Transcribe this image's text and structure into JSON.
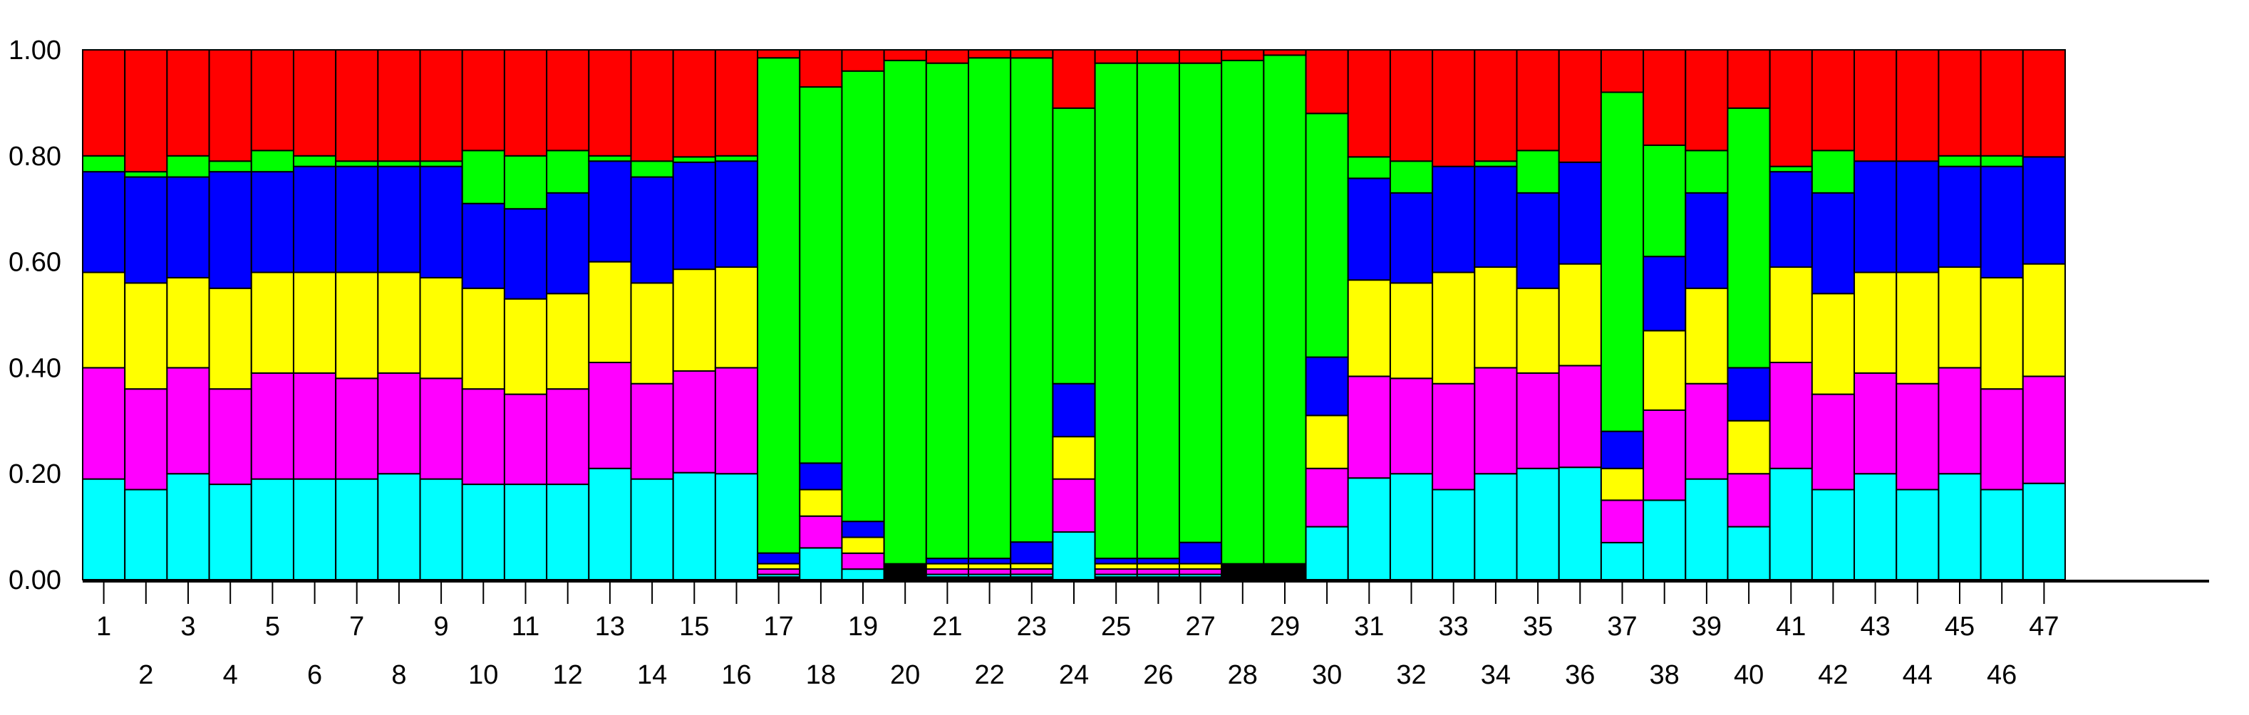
{
  "chart_data": {
    "type": "bar",
    "stacked": true,
    "orientation": "vertical",
    "categories": [
      "1",
      "2",
      "3",
      "4",
      "5",
      "6",
      "7",
      "8",
      "9",
      "10",
      "11",
      "12",
      "13",
      "14",
      "15",
      "16",
      "17",
      "18",
      "19",
      "20",
      "21",
      "22",
      "23",
      "24",
      "25",
      "26",
      "27",
      "28",
      "29",
      "30",
      "31",
      "32",
      "33",
      "34",
      "35",
      "36",
      "37",
      "38",
      "39",
      "40",
      "41",
      "42",
      "43",
      "44",
      "45",
      "46",
      "47"
    ],
    "y_ticks": [
      "0.00",
      "0.20",
      "0.40",
      "0.60",
      "0.80",
      "1.00"
    ],
    "ylim": [
      0,
      1
    ],
    "grid": false,
    "legend": "none",
    "series": [
      {
        "color": "#000000",
        "values": [
          0,
          0,
          0,
          0,
          0,
          0,
          0,
          0,
          0,
          0,
          0,
          0,
          0,
          0,
          0,
          0,
          0.005,
          0,
          0,
          0.03,
          0.005,
          0.005,
          0.005,
          0,
          0.005,
          0.005,
          0.005,
          0.03,
          0.03,
          0,
          0,
          0,
          0,
          0,
          0,
          0,
          0,
          0,
          0,
          0,
          0,
          0,
          0,
          0,
          0,
          0,
          0
        ]
      },
      {
        "color": "#00ffff",
        "values": [
          0.19,
          0.17,
          0.2,
          0.18,
          0.19,
          0.19,
          0.19,
          0.2,
          0.19,
          0.18,
          0.18,
          0.18,
          0.21,
          0.19,
          0.2,
          0.2,
          0.005,
          0.06,
          0.02,
          0,
          0.005,
          0.005,
          0.005,
          0.09,
          0.005,
          0.005,
          0.005,
          0,
          0,
          0.1,
          0.19,
          0.2,
          0.17,
          0.2,
          0.21,
          0.21,
          0.07,
          0.15,
          0.19,
          0.1,
          0.21,
          0.17,
          0.2,
          0.17,
          0.2,
          0.17,
          0.18
        ]
      },
      {
        "color": "#ff00ff",
        "values": [
          0.21,
          0.19,
          0.2,
          0.18,
          0.2,
          0.2,
          0.19,
          0.19,
          0.19,
          0.18,
          0.17,
          0.18,
          0.2,
          0.18,
          0.19,
          0.2,
          0.01,
          0.06,
          0.03,
          0,
          0.01,
          0.01,
          0.01,
          0.1,
          0.01,
          0.01,
          0.01,
          0,
          0,
          0.11,
          0.19,
          0.18,
          0.2,
          0.2,
          0.18,
          0.19,
          0.08,
          0.17,
          0.18,
          0.1,
          0.2,
          0.18,
          0.19,
          0.2,
          0.2,
          0.19,
          0.2
        ]
      },
      {
        "color": "#ffff00",
        "values": [
          0.18,
          0.2,
          0.17,
          0.19,
          0.19,
          0.19,
          0.2,
          0.19,
          0.19,
          0.19,
          0.18,
          0.18,
          0.19,
          0.19,
          0.19,
          0.19,
          0.01,
          0.05,
          0.03,
          0,
          0.01,
          0.01,
          0.01,
          0.08,
          0.01,
          0.01,
          0.01,
          0,
          0,
          0.1,
          0.18,
          0.18,
          0.21,
          0.19,
          0.16,
          0.19,
          0.06,
          0.15,
          0.18,
          0.1,
          0.18,
          0.19,
          0.19,
          0.21,
          0.19,
          0.21,
          0.21
        ]
      },
      {
        "color": "#0000ff",
        "values": [
          0.19,
          0.2,
          0.19,
          0.22,
          0.19,
          0.2,
          0.2,
          0.2,
          0.21,
          0.16,
          0.17,
          0.19,
          0.19,
          0.2,
          0.2,
          0.2,
          0.02,
          0.05,
          0.03,
          0,
          0.01,
          0.01,
          0.04,
          0.1,
          0.01,
          0.01,
          0.04,
          0,
          0,
          0.11,
          0.19,
          0.17,
          0.2,
          0.19,
          0.18,
          0.19,
          0.07,
          0.14,
          0.18,
          0.1,
          0.18,
          0.19,
          0.21,
          0.21,
          0.19,
          0.21,
          0.2
        ]
      },
      {
        "color": "#00ff00",
        "values": [
          0.03,
          0.01,
          0.04,
          0.02,
          0.04,
          0.02,
          0.01,
          0.01,
          0.01,
          0.1,
          0.1,
          0.08,
          0.01,
          0.03,
          0.01,
          0.01,
          0.93,
          0.71,
          0.85,
          0.95,
          0.93,
          0.94,
          0.9,
          0.52,
          0.93,
          0.93,
          0.9,
          0.95,
          0.96,
          0.46,
          0.04,
          0.06,
          0,
          0.01,
          0.08,
          0,
          0.64,
          0.21,
          0.08,
          0.49,
          0.01,
          0.08,
          0,
          0,
          0.02,
          0.02,
          0
        ]
      },
      {
        "color": "#ff0000",
        "values": [
          0.2,
          0.23,
          0.2,
          0.21,
          0.19,
          0.2,
          0.21,
          0.21,
          0.21,
          0.19,
          0.2,
          0.19,
          0.2,
          0.21,
          0.2,
          0.2,
          0.015,
          0.07,
          0.04,
          0.02,
          0.025,
          0.015,
          0.015,
          0.11,
          0.025,
          0.025,
          0.025,
          0.02,
          0.01,
          0.12,
          0.2,
          0.21,
          0.22,
          0.21,
          0.19,
          0.21,
          0.08,
          0.18,
          0.19,
          0.11,
          0.22,
          0.19,
          0.21,
          0.21,
          0.2,
          0.2,
          0.2
        ]
      }
    ]
  }
}
